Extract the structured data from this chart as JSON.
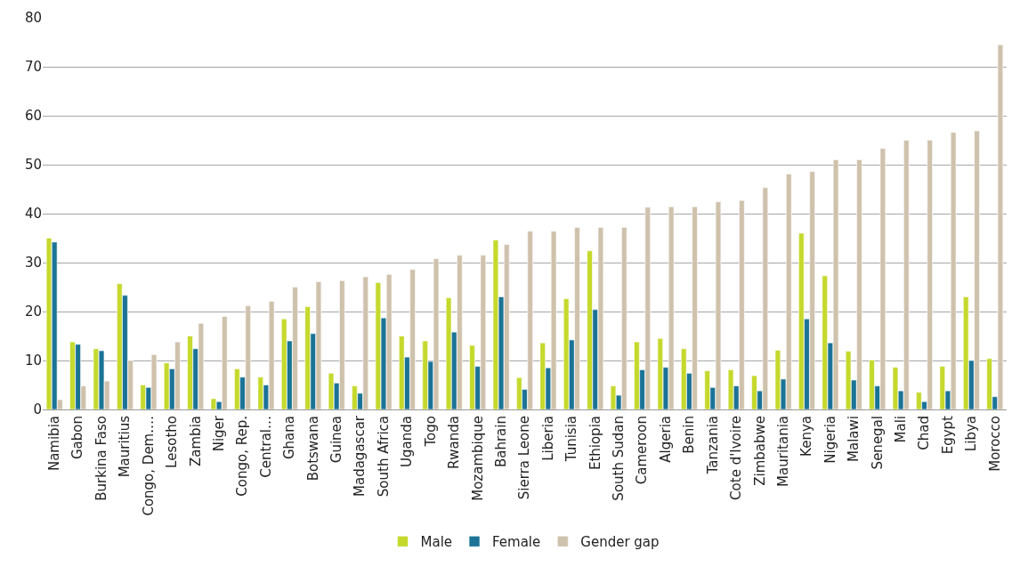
{
  "chart_data": {
    "type": "bar",
    "categories": [
      "Namibia",
      "Gabon",
      "Burkina Faso",
      "Mauritius",
      "Congo, Dem.…",
      "Lesotho",
      "Zambia",
      "Niger",
      "Congo, Rep.",
      "Central…",
      "Ghana",
      "Botswana",
      "Guinea",
      "Madagascar",
      "South Africa",
      "Uganda",
      "Togo",
      "Rwanda",
      "Mozambique",
      "Bahrain",
      "Sierra Leone",
      "Liberia",
      "Tunisia",
      "Ethiopia",
      "South Sudan",
      "Cameroon",
      "Algeria",
      "Benin",
      "Tanzania",
      "Cote d'Ivoire",
      "Zimbabwe",
      "Mauritania",
      "Kenya",
      "Nigeria",
      "Malawi",
      "Senegal",
      "Mali",
      "Chad",
      "Egypt",
      "Libya",
      "Morocco"
    ],
    "series": [
      {
        "name": "Male",
        "color": "#c5d92d",
        "values": [
          35,
          13.8,
          12.4,
          25.7,
          5,
          9.5,
          15,
          2.2,
          8.3,
          6.6,
          18.5,
          21,
          7.4,
          4.8,
          25.9,
          15,
          14,
          22.8,
          13.1,
          34.6,
          6.5,
          13.6,
          22.6,
          32.4,
          4.8,
          13.8,
          14.5,
          12.4,
          7.9,
          8.1,
          6.9,
          12.1,
          36,
          27.3,
          11.9,
          10.1,
          8.6,
          3.5,
          8.8,
          23,
          10.4
        ]
      },
      {
        "name": "Female",
        "color": "#1b7396",
        "values": [
          34.2,
          13.3,
          12,
          23.3,
          4.5,
          8.3,
          12.4,
          1.6,
          6.6,
          5,
          14,
          15.5,
          5.4,
          3.3,
          18.7,
          10.7,
          9.8,
          15.8,
          8.8,
          23,
          4.1,
          8.5,
          14.2,
          20.4,
          2.9,
          8.1,
          8.6,
          7.4,
          4.5,
          4.8,
          3.8,
          6.2,
          18.5,
          13.6,
          6,
          4.8,
          3.8,
          1.6,
          3.8,
          10,
          2.6
        ]
      },
      {
        "name": "Gender gap",
        "color": "#cfc2ad",
        "values": [
          2,
          4.8,
          5.8,
          10,
          11.2,
          13.8,
          17.6,
          19,
          21.2,
          22.1,
          25,
          26.1,
          26.3,
          27.1,
          27.6,
          28.6,
          30.8,
          31.5,
          31.5,
          33.7,
          36.4,
          36.4,
          37.2,
          37.2,
          37.2,
          41.3,
          41.4,
          41.4,
          42.4,
          42.7,
          45.3,
          48.1,
          48.6,
          51,
          51,
          53.3,
          55,
          55,
          56.6,
          56.9,
          74.5
        ]
      }
    ],
    "ylim": [
      0,
      80
    ],
    "yticks": [
      0,
      10,
      20,
      30,
      40,
      50,
      60,
      70,
      80
    ],
    "grid": "y",
    "legend": "bottom"
  }
}
